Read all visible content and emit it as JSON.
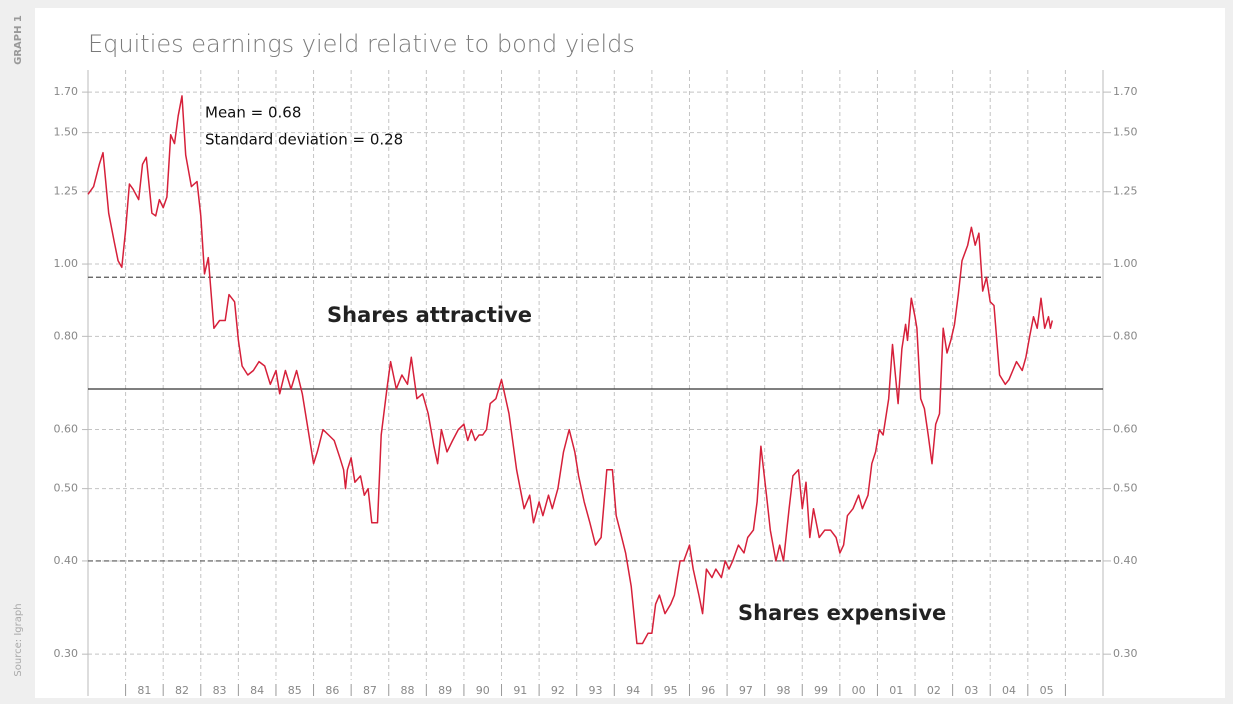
{
  "chart_data": {
    "type": "line",
    "side_label": "GRAPH 1",
    "title": "Equities earnings yield relative to bond yields",
    "source": "Source: Igraph",
    "annotations": [
      "Mean = 0.68",
      "Standard deviation = 0.28",
      "Shares attractive",
      "Shares expensive"
    ],
    "log_scale": true,
    "grid": true,
    "color": "#d6203a",
    "xlim": [
      1980,
      2007
    ],
    "ylim": [
      0.277,
      1.82
    ],
    "yticks": [
      {
        "value": 1.7,
        "label": "1.70"
      },
      {
        "value": 1.5,
        "label": "1.50"
      },
      {
        "value": 1.25,
        "label": "1.25"
      },
      {
        "value": 1.0,
        "label": "1.00"
      },
      {
        "value": 0.8,
        "label": "0.80"
      },
      {
        "value": 0.6,
        "label": "0.60"
      },
      {
        "value": 0.5,
        "label": "0.50"
      },
      {
        "value": 0.4,
        "label": "0.40"
      },
      {
        "value": 0.3,
        "label": "0.30"
      }
    ],
    "categories": [
      "81",
      "82",
      "83",
      "84",
      "85",
      "86",
      "87",
      "88",
      "89",
      "90",
      "91",
      "92",
      "93",
      "94",
      "95",
      "96",
      "97",
      "98",
      "99",
      "00",
      "01",
      "02",
      "03",
      "04",
      "05"
    ],
    "xgrid": [
      1981,
      1982,
      1983,
      1984,
      1985,
      1986,
      1987,
      1988,
      1989,
      1990,
      1991,
      1992,
      1993,
      1994,
      1995,
      1996,
      1997,
      1998,
      1999,
      2000,
      2001,
      2002,
      2003,
      2004,
      2005,
      2006
    ],
    "reference_lines": [
      {
        "value": 0.96,
        "style": "dashed"
      },
      {
        "value": 0.68,
        "style": "solid"
      },
      {
        "value": 0.4,
        "style": "dashed"
      }
    ],
    "x": [
      1980.0,
      1980.15,
      1980.3,
      1980.4,
      1980.55,
      1980.7,
      1980.8,
      1980.9,
      1981.0,
      1981.1,
      1981.2,
      1981.35,
      1981.45,
      1981.55,
      1981.7,
      1981.8,
      1981.9,
      1982.0,
      1982.1,
      1982.2,
      1982.3,
      1982.4,
      1982.5,
      1982.6,
      1982.75,
      1982.9,
      1983.0,
      1983.1,
      1983.2,
      1983.35,
      1983.5,
      1983.65,
      1983.75,
      1983.9,
      1984.0,
      1984.1,
      1984.25,
      1984.4,
      1984.55,
      1984.7,
      1984.85,
      1985.0,
      1985.1,
      1985.25,
      1985.4,
      1985.55,
      1985.7,
      1986.0,
      1986.1,
      1986.25,
      1986.4,
      1986.55,
      1986.7,
      1986.8,
      1986.85,
      1986.9,
      1987.0,
      1987.1,
      1987.25,
      1987.35,
      1987.45,
      1987.55,
      1987.7,
      1987.8,
      1987.95,
      1988.05,
      1988.2,
      1988.35,
      1988.5,
      1988.6,
      1988.75,
      1988.9,
      1989.05,
      1989.2,
      1989.3,
      1989.4,
      1989.55,
      1989.7,
      1989.85,
      1990.0,
      1990.1,
      1990.2,
      1990.3,
      1990.4,
      1990.5,
      1990.6,
      1990.7,
      1990.85,
      1991.0,
      1991.2,
      1991.4,
      1991.6,
      1991.75,
      1991.85,
      1992.0,
      1992.1,
      1992.25,
      1992.35,
      1992.5,
      1992.65,
      1992.8,
      1992.95,
      1993.05,
      1993.2,
      1993.35,
      1993.5,
      1993.65,
      1993.8,
      1993.95,
      1994.05,
      1994.15,
      1994.3,
      1994.45,
      1994.6,
      1994.75,
      1994.9,
      1995.0,
      1995.1,
      1995.2,
      1995.35,
      1995.5,
      1995.6,
      1995.75,
      1995.85,
      1996.0,
      1996.1,
      1996.25,
      1996.35,
      1996.45,
      1996.6,
      1996.7,
      1996.85,
      1996.95,
      1997.05,
      1997.15,
      1997.3,
      1997.45,
      1997.55,
      1997.7,
      1997.8,
      1997.9,
      1998.05,
      1998.15,
      1998.3,
      1998.4,
      1998.5,
      1998.65,
      1998.75,
      1998.9,
      1999.0,
      1999.1,
      1999.2,
      1999.3,
      1999.45,
      1999.6,
      1999.75,
      1999.9,
      2000.0,
      2000.1,
      2000.2,
      2000.35,
      2000.5,
      2000.6,
      2000.75,
      2000.85,
      2000.95,
      2001.05,
      2001.15,
      2001.3,
      2001.4,
      2001.55,
      2001.65,
      2001.75,
      2001.8,
      2001.9,
      2002.0,
      2002.05,
      2002.15,
      2002.25,
      2002.35,
      2002.45,
      2002.55,
      2002.65,
      2002.75,
      2002.85,
      2002.95,
      2003.05,
      2003.15,
      2003.25,
      2003.4,
      2003.5,
      2003.6,
      2003.7,
      2003.8,
      2003.9,
      2004.0,
      2004.1,
      2004.25,
      2004.4,
      2004.5,
      2004.6,
      2004.7,
      2004.85,
      2004.95,
      2005.05,
      2005.15,
      2005.25,
      2005.35,
      2005.45,
      2005.55,
      2005.6,
      2005.65
    ],
    "values": [
      1.24,
      1.27,
      1.36,
      1.41,
      1.17,
      1.07,
      1.01,
      0.99,
      1.11,
      1.28,
      1.26,
      1.22,
      1.36,
      1.39,
      1.17,
      1.16,
      1.22,
      1.19,
      1.23,
      1.49,
      1.45,
      1.58,
      1.68,
      1.4,
      1.27,
      1.29,
      1.16,
      0.97,
      1.02,
      0.82,
      0.84,
      0.84,
      0.91,
      0.89,
      0.79,
      0.73,
      0.71,
      0.72,
      0.74,
      0.73,
      0.69,
      0.72,
      0.67,
      0.72,
      0.68,
      0.72,
      0.67,
      0.54,
      0.56,
      0.6,
      0.59,
      0.58,
      0.55,
      0.53,
      0.5,
      0.53,
      0.55,
      0.51,
      0.52,
      0.49,
      0.5,
      0.45,
      0.45,
      0.59,
      0.68,
      0.74,
      0.68,
      0.71,
      0.69,
      0.75,
      0.66,
      0.67,
      0.63,
      0.57,
      0.54,
      0.6,
      0.56,
      0.58,
      0.6,
      0.61,
      0.58,
      0.6,
      0.58,
      0.59,
      0.59,
      0.6,
      0.65,
      0.66,
      0.7,
      0.63,
      0.53,
      0.47,
      0.49,
      0.45,
      0.48,
      0.46,
      0.49,
      0.47,
      0.5,
      0.56,
      0.6,
      0.56,
      0.52,
      0.48,
      0.45,
      0.42,
      0.43,
      0.53,
      0.53,
      0.46,
      0.44,
      0.41,
      0.37,
      0.31,
      0.31,
      0.32,
      0.32,
      0.35,
      0.36,
      0.34,
      0.35,
      0.36,
      0.4,
      0.4,
      0.42,
      0.39,
      0.36,
      0.34,
      0.39,
      0.38,
      0.39,
      0.38,
      0.4,
      0.39,
      0.4,
      0.42,
      0.41,
      0.43,
      0.44,
      0.48,
      0.57,
      0.49,
      0.44,
      0.4,
      0.42,
      0.4,
      0.47,
      0.52,
      0.53,
      0.47,
      0.51,
      0.43,
      0.47,
      0.43,
      0.44,
      0.44,
      0.43,
      0.41,
      0.42,
      0.46,
      0.47,
      0.49,
      0.47,
      0.49,
      0.54,
      0.56,
      0.6,
      0.59,
      0.66,
      0.78,
      0.65,
      0.77,
      0.83,
      0.79,
      0.9,
      0.85,
      0.82,
      0.66,
      0.64,
      0.59,
      0.54,
      0.61,
      0.63,
      0.82,
      0.76,
      0.79,
      0.83,
      0.91,
      1.01,
      1.06,
      1.12,
      1.06,
      1.1,
      0.92,
      0.96,
      0.89,
      0.88,
      0.71,
      0.69,
      0.7,
      0.72,
      0.74,
      0.72,
      0.75,
      0.8,
      0.85,
      0.82,
      0.9,
      0.82,
      0.85,
      0.82,
      0.84
    ]
  }
}
